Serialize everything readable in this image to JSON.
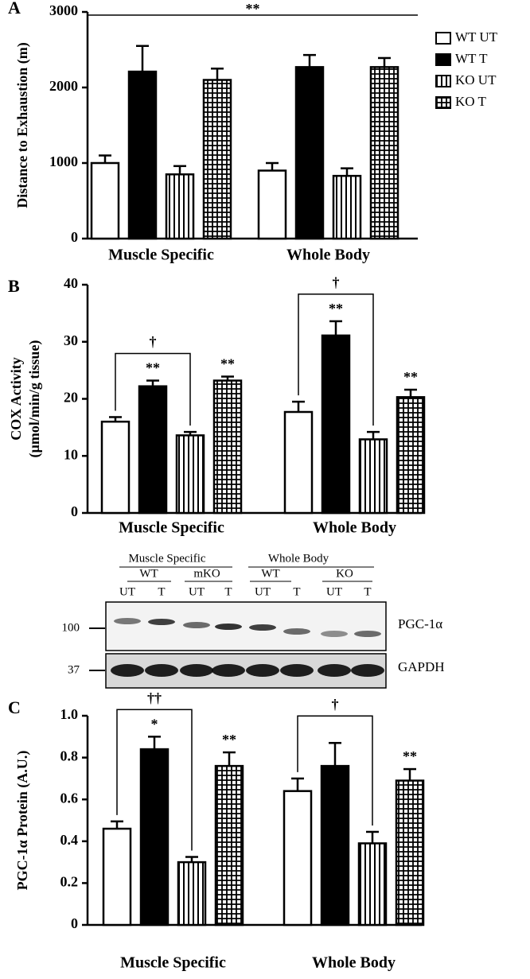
{
  "chart_data": [
    {
      "type": "bar",
      "panel": "A",
      "ylabel": "Distance to Exhaustion (m)",
      "categories": [
        "Muscle Specific",
        "Whole Body"
      ],
      "series": [
        {
          "name": "WT UT",
          "pattern": "white",
          "values": [
            1000,
            900
          ],
          "errors": [
            100,
            100
          ]
        },
        {
          "name": "WT T",
          "pattern": "black",
          "values": [
            2210,
            2270
          ],
          "errors": [
            340,
            160
          ]
        },
        {
          "name": "KO UT",
          "pattern": "vstripes",
          "values": [
            850,
            830
          ],
          "errors": [
            110,
            100
          ]
        },
        {
          "name": "KO T",
          "pattern": "grid",
          "values": [
            2100,
            2270
          ],
          "errors": [
            150,
            120
          ]
        }
      ],
      "ylim": [
        0,
        3000
      ],
      "yticks": [
        0,
        1000,
        2000,
        3000
      ],
      "legend": "top right",
      "significance": "**"
    },
    {
      "type": "bar",
      "panel": "B",
      "ylabel": [
        "COX Activity",
        "(µmol/min/g tissue)"
      ],
      "categories": [
        "Muscle Specific",
        "Whole Body"
      ],
      "series": [
        {
          "pattern": "white",
          "values": [
            16,
            17.7
          ],
          "errors": [
            0.8,
            1.8
          ]
        },
        {
          "pattern": "black",
          "values": [
            22.2,
            31.1
          ],
          "errors": [
            1.0,
            2.5
          ],
          "sig": [
            "**",
            "**"
          ]
        },
        {
          "pattern": "vstripes",
          "values": [
            13.6,
            12.9
          ],
          "errors": [
            0.6,
            1.3
          ]
        },
        {
          "pattern": "grid",
          "values": [
            23.2,
            20.3
          ],
          "errors": [
            0.7,
            1.3
          ],
          "sig": [
            "**",
            "**"
          ]
        }
      ],
      "brackets": [
        "†",
        "†"
      ],
      "ylim": [
        0,
        40
      ],
      "yticks": [
        0,
        10,
        20,
        30,
        40
      ]
    },
    {
      "type": "bar",
      "panel": "C",
      "ylabel": "PGC-1α  Protein (A.U.)",
      "categories": [
        "Muscle Specific",
        "Whole Body"
      ],
      "series": [
        {
          "pattern": "white",
          "values": [
            0.46,
            0.64
          ],
          "errors": [
            0.035,
            0.06
          ]
        },
        {
          "pattern": "black",
          "values": [
            0.84,
            0.76
          ],
          "errors": [
            0.06,
            0.11
          ],
          "sig": [
            "*",
            null
          ]
        },
        {
          "pattern": "vstripes",
          "values": [
            0.3,
            0.39
          ],
          "errors": [
            0.025,
            0.055
          ]
        },
        {
          "pattern": "grid",
          "values": [
            0.76,
            0.69
          ],
          "errors": [
            0.065,
            0.055
          ],
          "sig": [
            "**",
            "**"
          ]
        }
      ],
      "brackets": [
        "††",
        "†"
      ],
      "ylim": [
        0,
        1
      ],
      "yticks": [
        0,
        0.2,
        0.4,
        0.6,
        0.8,
        {
          "value": 1,
          "label": "1.0"
        }
      ]
    }
  ],
  "blot": {
    "groups": [
      "Muscle Specific",
      "Whole Body"
    ],
    "genotypes": [
      "WT",
      "mKO",
      "WT",
      "KO"
    ],
    "lanes": [
      "UT",
      "T",
      "UT",
      "T",
      "UT",
      "T",
      "UT",
      "T"
    ],
    "markers": [
      "100",
      "37"
    ],
    "proteins": [
      "PGC-1α",
      "GAPDH"
    ]
  }
}
